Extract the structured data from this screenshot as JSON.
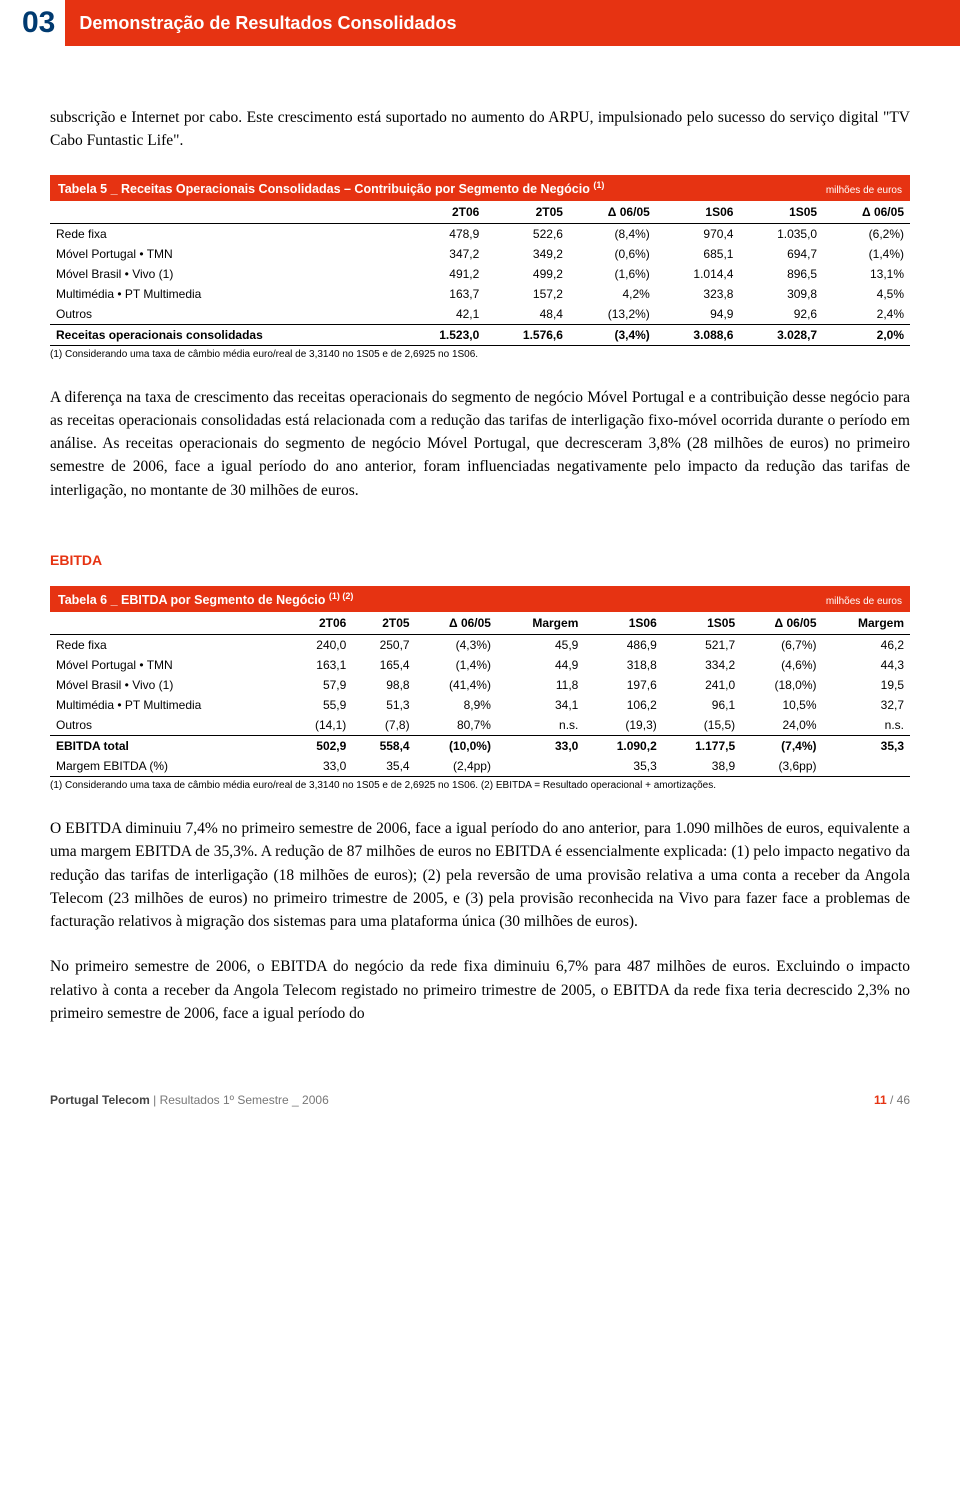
{
  "header": {
    "number": "03",
    "title": "Demonstração de Resultados Consolidados"
  },
  "intro": "subscrição e Internet por cabo. Este crescimento está suportado no aumento do ARPU, impulsionado pelo sucesso do serviço digital \"TV Cabo Funtastic Life\".",
  "table5": {
    "title": "Tabela 5 _ Receitas Operacionais Consolidadas – Contribuição por Segmento de Negócio ",
    "title_sup": "(1)",
    "unit": "milhões de euros",
    "columns": [
      "",
      "2T06",
      "2T05",
      "Δ 06/05",
      "1S06",
      "1S05",
      "Δ 06/05"
    ],
    "rows": [
      [
        "Rede fixa",
        "478,9",
        "522,6",
        "(8,4%)",
        "970,4",
        "1.035,0",
        "(6,2%)"
      ],
      [
        "Móvel Portugal • TMN",
        "347,2",
        "349,2",
        "(0,6%)",
        "685,1",
        "694,7",
        "(1,4%)"
      ],
      [
        "Móvel Brasil • Vivo (1)",
        "491,2",
        "499,2",
        "(1,6%)",
        "1.014,4",
        "896,5",
        "13,1%"
      ],
      [
        "Multimédia • PT Multimedia",
        "163,7",
        "157,2",
        "4,2%",
        "323,8",
        "309,8",
        "4,5%"
      ],
      [
        "Outros",
        "42,1",
        "48,4",
        "(13,2%)",
        "94,9",
        "92,6",
        "2,4%"
      ]
    ],
    "total": [
      "Receitas operacionais consolidadas",
      "1.523,0",
      "1.576,6",
      "(3,4%)",
      "3.088,6",
      "3.028,7",
      "2,0%"
    ],
    "footnote": "(1) Considerando uma taxa de câmbio média euro/real de 3,3140 no 1S05 e de 2,6925 no 1S06."
  },
  "para_after_t5": "A diferença na taxa de crescimento das receitas operacionais do segmento de negócio Móvel Portugal e a contribuição desse negócio para as receitas operacionais consolidadas está relacionada com a redução das tarifas de interligação fixo-móvel ocorrida durante o período em análise. As receitas operacionais do segmento de negócio Móvel Portugal, que decresceram 3,8% (28 milhões de euros) no primeiro semestre de 2006, face a igual período do ano anterior, foram influenciadas negativamente pelo impacto da redução das tarifas de interligação, no montante de 30 milhões de euros.",
  "ebitda_heading": "EBITDA",
  "table6": {
    "title": "Tabela 6 _ EBITDA por Segmento de Negócio ",
    "title_sup": "(1) (2)",
    "unit": "milhões de euros",
    "columns": [
      "",
      "2T06",
      "2T05",
      "Δ 06/05",
      "Margem",
      "1S06",
      "1S05",
      "Δ 06/05",
      "Margem"
    ],
    "rows": [
      [
        "Rede fixa",
        "240,0",
        "250,7",
        "(4,3%)",
        "45,9",
        "486,9",
        "521,7",
        "(6,7%)",
        "46,2"
      ],
      [
        "Móvel Portugal • TMN",
        "163,1",
        "165,4",
        "(1,4%)",
        "44,9",
        "318,8",
        "334,2",
        "(4,6%)",
        "44,3"
      ],
      [
        "Móvel Brasil • Vivo (1)",
        "57,9",
        "98,8",
        "(41,4%)",
        "11,8",
        "197,6",
        "241,0",
        "(18,0%)",
        "19,5"
      ],
      [
        "Multimédia • PT Multimedia",
        "55,9",
        "51,3",
        "8,9%",
        "34,1",
        "106,2",
        "96,1",
        "10,5%",
        "32,7"
      ],
      [
        "Outros",
        "(14,1)",
        "(7,8)",
        "80,7%",
        "n.s.",
        "(19,3)",
        "(15,5)",
        "24,0%",
        "n.s."
      ]
    ],
    "total": [
      "EBITDA total",
      "502,9",
      "558,4",
      "(10,0%)",
      "33,0",
      "1.090,2",
      "1.177,5",
      "(7,4%)",
      "35,3"
    ],
    "margin_row": [
      "Margem EBITDA (%)",
      "33,0",
      "35,4",
      "(2,4pp)",
      "",
      "35,3",
      "38,9",
      "(3,6pp)",
      ""
    ],
    "footnote": "(1) Considerando uma taxa de câmbio média euro/real de 3,3140 no 1S05 e de 2,6925 no 1S06. (2) EBITDA = Resultado operacional + amortizações."
  },
  "para_after_t6_1": "O EBITDA diminuiu 7,4% no primeiro semestre de 2006, face a igual período do ano anterior, para 1.090 milhões de euros, equivalente a uma margem EBITDA de 35,3%. A redução de 87 milhões de euros no EBITDA é essencialmente explicada: (1) pelo impacto negativo da redução das tarifas de interligação (18 milhões de euros); (2) pela reversão de uma provisão relativa a uma conta a receber da Angola Telecom (23 milhões de euros) no primeiro trimestre de 2005, e (3) pela provisão reconhecida na Vivo para fazer face a problemas de facturação relativos à migração dos sistemas para uma plataforma única (30 milhões de euros).",
  "para_after_t6_2": "No primeiro semestre de 2006, o EBITDA do negócio da rede fixa diminuiu 6,7% para 487 milhões de euros. Excluindo o impacto relativo à conta a receber da Angola Telecom registado no primeiro trimestre de 2005, o EBITDA da rede fixa teria decrescido 2,3% no primeiro semestre de 2006, face a igual período do",
  "footer": {
    "company": "Portugal Telecom",
    "sep": " | ",
    "doc": "Resultados 1º Semestre _ 2006",
    "page_current": "11",
    "page_sep": " / ",
    "page_total": "46"
  }
}
